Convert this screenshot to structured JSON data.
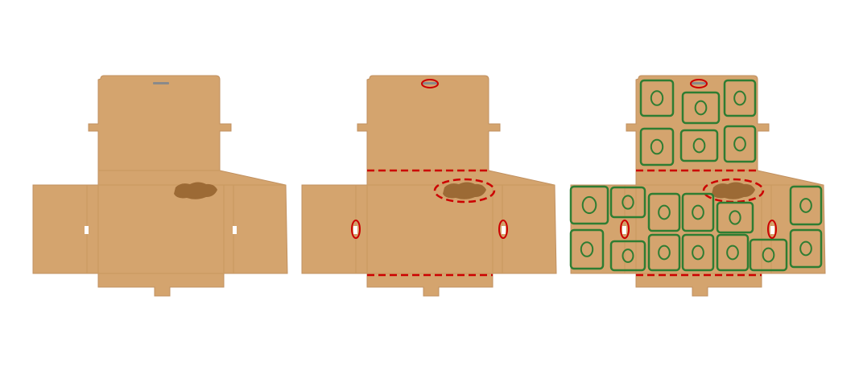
{
  "colors": {
    "background": "#ffffff",
    "cardboard": "#d4a46e",
    "cardboard_edge": "#c09060",
    "fold_line": "#c9995f",
    "stain": "#9c6a35",
    "defect_marker": "#cc0000",
    "detection_box": "#2e7d32"
  },
  "panels": [
    {
      "id": "original",
      "show_defects": false,
      "show_detections": false
    },
    {
      "id": "defects-marked",
      "show_defects": true,
      "show_detections": false
    },
    {
      "id": "detections",
      "show_defects": true,
      "show_detections": true
    }
  ]
}
